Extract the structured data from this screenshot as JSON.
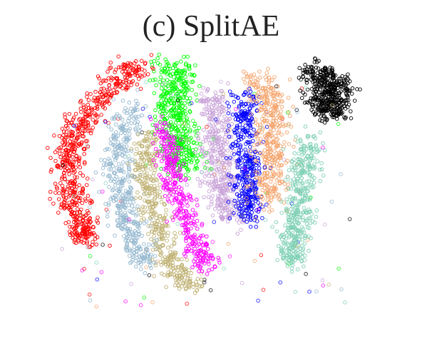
{
  "chart_data": {
    "type": "scatter",
    "title": "(c) SplitAE",
    "subtitle": "",
    "xlabel": "",
    "ylabel": "",
    "axes_visible": false,
    "grid": false,
    "legend": "none",
    "marker": "hollow-circle",
    "xlim": [
      0,
      100
    ],
    "ylim": [
      0,
      100
    ],
    "series": [
      {
        "color": "#ff0000",
        "count": 650,
        "points": [
          [
            30.5,
            97
          ],
          [
            25,
            91
          ],
          [
            18,
            83
          ],
          [
            13,
            74
          ],
          [
            10.5,
            65
          ],
          [
            11,
            56
          ],
          [
            12.5,
            47
          ],
          [
            14.5,
            39
          ],
          [
            15.5,
            34
          ]
        ],
        "spread": 3.2
      },
      {
        "color": "#00ff00",
        "count": 480,
        "points": [
          [
            40.5,
            98
          ],
          [
            42,
            90
          ],
          [
            41,
            82
          ],
          [
            42.5,
            74
          ],
          [
            44,
            66
          ],
          [
            45,
            60
          ]
        ],
        "spread": 3.8
      },
      {
        "color": "#c8a2d8",
        "count": 450,
        "points": [
          [
            52,
            87
          ],
          [
            54,
            78
          ],
          [
            53,
            70
          ],
          [
            54,
            62
          ],
          [
            55,
            54
          ],
          [
            56,
            47
          ],
          [
            58,
            42
          ]
        ],
        "spread": 3.4
      },
      {
        "color": "#0000ff",
        "count": 420,
        "points": [
          [
            61.5,
            87
          ],
          [
            62,
            79
          ],
          [
            61,
            71
          ],
          [
            62.5,
            63
          ],
          [
            62,
            55
          ],
          [
            62.5,
            47
          ],
          [
            63,
            42
          ]
        ],
        "spread": 2.9
      },
      {
        "color": "#f5a56e",
        "count": 420,
        "points": [
          [
            65,
            93
          ],
          [
            68,
            86
          ],
          [
            70,
            78
          ],
          [
            69,
            70
          ],
          [
            70,
            62
          ],
          [
            69,
            54
          ],
          [
            68.5,
            48
          ]
        ],
        "spread": 3.4
      },
      {
        "color": "#000000",
        "count": 460,
        "points": [
          [
            81,
            96
          ],
          [
            85,
            93
          ],
          [
            89,
            89
          ],
          [
            83,
            86
          ],
          [
            88,
            82
          ],
          [
            85,
            80
          ]
        ],
        "spread": 3.6
      },
      {
        "color": "#80d1b6",
        "count": 440,
        "points": [
          [
            80,
            70
          ],
          [
            79,
            62
          ],
          [
            78,
            54
          ],
          [
            77,
            46
          ],
          [
            76,
            38
          ],
          [
            75,
            31
          ],
          [
            76,
            26
          ]
        ],
        "spread": 3.0
      },
      {
        "color": "#93b7cf",
        "count": 430,
        "points": [
          [
            30,
            84
          ],
          [
            27,
            75
          ],
          [
            25,
            66
          ],
          [
            25,
            58
          ],
          [
            26,
            50
          ],
          [
            28,
            42
          ],
          [
            29,
            36
          ],
          [
            31,
            30
          ],
          [
            33,
            26
          ]
        ],
        "spread": 2.9
      },
      {
        "color": "#bfb173",
        "count": 420,
        "points": [
          [
            33.5,
            72
          ],
          [
            33,
            64
          ],
          [
            33.5,
            56
          ],
          [
            35,
            48
          ],
          [
            36.5,
            40
          ],
          [
            38,
            32
          ],
          [
            40,
            26
          ],
          [
            43,
            21
          ],
          [
            47,
            18
          ]
        ],
        "spread": 2.7
      },
      {
        "color": "#ff00ff",
        "count": 380,
        "points": [
          [
            37.5,
            76
          ],
          [
            39,
            69
          ],
          [
            40,
            62
          ],
          [
            41,
            55
          ],
          [
            43,
            48
          ],
          [
            45,
            41
          ],
          [
            47,
            34
          ],
          [
            49,
            28
          ],
          [
            50,
            24
          ]
        ],
        "spread": 2.6
      }
    ]
  }
}
